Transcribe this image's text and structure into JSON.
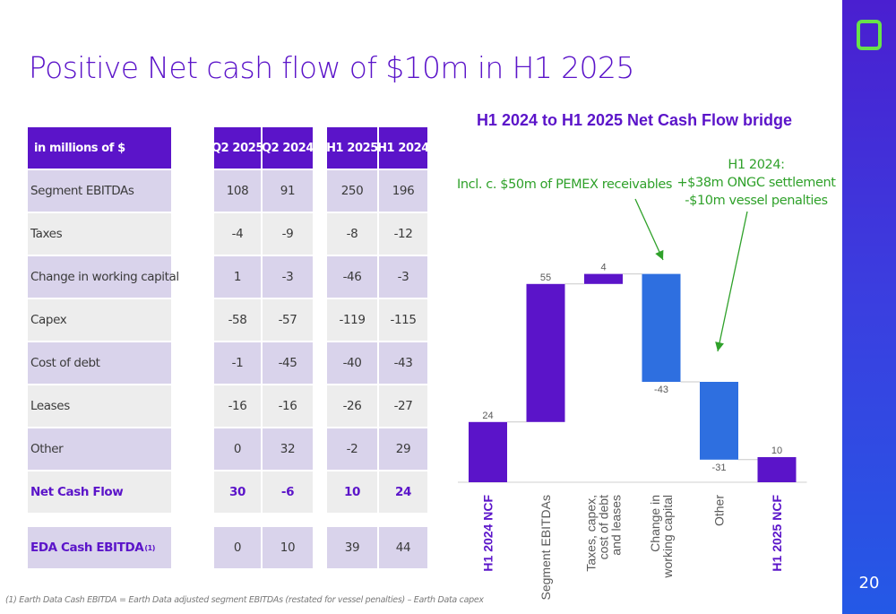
{
  "title": "Positive Net cash flow of $10m in H1 2025",
  "page_number": "20",
  "table": {
    "header": [
      "in millions of $",
      "Q2 2025",
      "Q2 2024",
      "H1 2025",
      "H1 2024"
    ],
    "rows": [
      {
        "label": "Segment EBITDAs",
        "values": [
          "108",
          "91",
          "250",
          "196"
        ]
      },
      {
        "label": "Taxes",
        "values": [
          "-4",
          "-9",
          "-8",
          "-12"
        ]
      },
      {
        "label": "Change in working capital",
        "values": [
          "1",
          "-3",
          "-46",
          "-3"
        ]
      },
      {
        "label": "Capex",
        "values": [
          "-58",
          "-57",
          "-119",
          "-115"
        ]
      },
      {
        "label": "Cost of debt",
        "values": [
          "-1",
          "-45",
          "-40",
          "-43"
        ]
      },
      {
        "label": "Leases",
        "values": [
          "-16",
          "-16",
          "-26",
          "-27"
        ]
      },
      {
        "label": "Other",
        "values": [
          "0",
          "32",
          "-2",
          "29"
        ]
      },
      {
        "label": "Net Cash Flow",
        "values": [
          "30",
          "-6",
          "10",
          "24"
        ]
      },
      {
        "label": "EDA Cash EBITDA",
        "sup": "(1)",
        "values": [
          "0",
          "10",
          "39",
          "44"
        ]
      }
    ]
  },
  "footnote": "(1) Earth Data Cash EBITDA = Earth Data adjusted segment EBITDAs (restated for vessel penalties) – Earth Data capex",
  "annotations": {
    "left": "Incl. c. $50m of PEMEX receivables",
    "right": [
      "H1 2024:",
      "+$38m ONGC settlement",
      "-$10m vessel penalties"
    ]
  },
  "colors": {
    "purple": "#5b14c9",
    "blue": "#2e6fe0",
    "green": "#2fa12a",
    "band": "#d9d3eb"
  },
  "chart_data": {
    "type": "bar",
    "subtype": "waterfall",
    "title": "H1 2024 to H1 2025 Net Cash Flow bridge",
    "categories": [
      "H1 2024 NCF",
      "Segment EBITDAs",
      "Taxes, capex, cost of debt and leases",
      "Change in working capital",
      "Other",
      "H1 2025 NCF"
    ],
    "values": [
      24,
      55,
      4,
      -43,
      -31,
      10
    ],
    "value_labels": [
      "24",
      "55",
      "4",
      "-43",
      "-31",
      "10"
    ],
    "kind": [
      "total",
      "delta",
      "delta",
      "delta",
      "delta",
      "total"
    ],
    "bar_colors": [
      "#5b14c9",
      "#5b14c9",
      "#5b14c9",
      "#2e6fe0",
      "#2e6fe0",
      "#5b14c9"
    ],
    "bold_categories": [
      "H1 2024 NCF",
      "H1 2025 NCF"
    ],
    "ylim": [
      0,
      90
    ],
    "grid": false,
    "xlabel": "",
    "ylabel": ""
  }
}
